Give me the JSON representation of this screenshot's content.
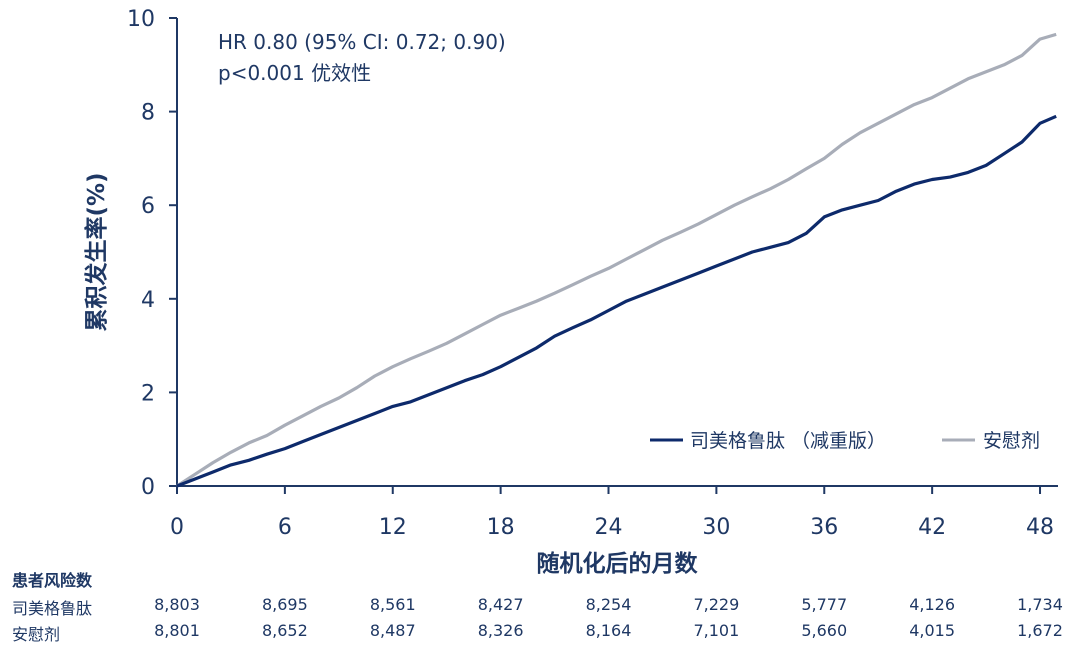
{
  "chart_data": {
    "type": "line",
    "title": "",
    "xlabel": "随机化后的月数",
    "ylabel": "累积发生率(%)",
    "xlim": [
      0,
      49
    ],
    "ylim": [
      0,
      10
    ],
    "xticks": [
      "0",
      "6",
      "12",
      "18",
      "24",
      "30",
      "36",
      "42",
      "48"
    ],
    "yticks": [
      "0",
      "2",
      "4",
      "6",
      "8",
      "10"
    ],
    "grid": false,
    "legend_position": "bottom-right",
    "annotation_lines": [
      "HR 0.80 (95% CI: 0.72; 0.90)",
      "p<0.001 优效性"
    ],
    "series": [
      {
        "name": "司美格鲁肽 （减重版）",
        "color": "#0d2a6b",
        "x": [
          0,
          1,
          2,
          3,
          4,
          5,
          6,
          7,
          8,
          9,
          10,
          11,
          12,
          13,
          14,
          15,
          16,
          17,
          18,
          19,
          20,
          21,
          22,
          23,
          24,
          25,
          26,
          27,
          28,
          29,
          30,
          31,
          32,
          33,
          34,
          35,
          36,
          37,
          38,
          39,
          40,
          41,
          42,
          43,
          44,
          45,
          46,
          47,
          48,
          48.9
        ],
        "values": [
          0,
          0.15,
          0.3,
          0.45,
          0.55,
          0.68,
          0.8,
          0.95,
          1.1,
          1.25,
          1.4,
          1.55,
          1.7,
          1.8,
          1.95,
          2.1,
          2.25,
          2.38,
          2.55,
          2.75,
          2.95,
          3.2,
          3.38,
          3.55,
          3.75,
          3.95,
          4.1,
          4.25,
          4.4,
          4.55,
          4.7,
          4.85,
          5.0,
          5.1,
          5.2,
          5.4,
          5.75,
          5.9,
          6.0,
          6.1,
          6.3,
          6.45,
          6.55,
          6.6,
          6.7,
          6.85,
          7.1,
          7.35,
          7.75,
          7.9
        ]
      },
      {
        "name": "安慰剂",
        "color": "#a8adb8",
        "x": [
          0,
          1,
          2,
          3,
          4,
          5,
          6,
          7,
          8,
          9,
          10,
          11,
          12,
          13,
          14,
          15,
          16,
          17,
          18,
          19,
          20,
          21,
          22,
          23,
          24,
          25,
          26,
          27,
          28,
          29,
          30,
          31,
          32,
          33,
          34,
          35,
          36,
          37,
          38,
          39,
          40,
          41,
          42,
          43,
          44,
          45,
          46,
          47,
          48,
          48.9
        ],
        "values": [
          0,
          0.25,
          0.5,
          0.72,
          0.92,
          1.08,
          1.3,
          1.5,
          1.7,
          1.88,
          2.1,
          2.35,
          2.55,
          2.72,
          2.88,
          3.05,
          3.25,
          3.45,
          3.65,
          3.8,
          3.95,
          4.12,
          4.3,
          4.48,
          4.65,
          4.85,
          5.05,
          5.25,
          5.42,
          5.6,
          5.8,
          6.0,
          6.18,
          6.35,
          6.55,
          6.78,
          7.0,
          7.3,
          7.55,
          7.75,
          7.95,
          8.15,
          8.3,
          8.5,
          8.7,
          8.85,
          9.0,
          9.2,
          9.55,
          9.65
        ]
      }
    ]
  },
  "risk_table": {
    "title": "患者风险数",
    "months": [
      0,
      6,
      12,
      18,
      24,
      30,
      36,
      42,
      48
    ],
    "rows": [
      {
        "label": "司美格鲁肽",
        "values": [
          "8,803",
          "8,695",
          "8,561",
          "8,427",
          "8,254",
          "7,229",
          "5,777",
          "4,126",
          "1,734"
        ]
      },
      {
        "label": "安慰剂",
        "values": [
          "8,801",
          "8,652",
          "8,487",
          "8,326",
          "8,164",
          "7,101",
          "5,660",
          "4,015",
          "1,672"
        ]
      }
    ]
  }
}
